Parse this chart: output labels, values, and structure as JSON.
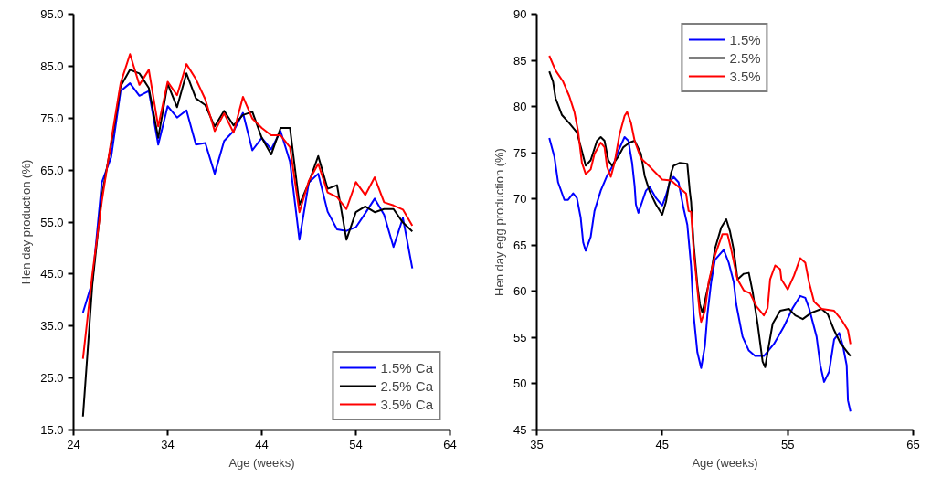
{
  "chart_data": [
    {
      "type": "line",
      "xlabel": "Age (weeks)",
      "ylabel": "Hen day production (%)",
      "xlim": [
        24,
        64
      ],
      "xticks": [
        24,
        34,
        44,
        54,
        64
      ],
      "ylim": [
        15,
        95
      ],
      "yticks": [
        {
          "value": 15,
          "label": "15.0"
        },
        {
          "value": 25,
          "label": "25.0"
        },
        {
          "value": 35,
          "label": "35.0"
        },
        {
          "value": 45,
          "label": "45.0"
        },
        {
          "value": 55,
          "label": "55.0"
        },
        {
          "value": 65,
          "label": "65.0"
        },
        {
          "value": 75,
          "label": "75.0"
        },
        {
          "value": 85,
          "label": "85.0"
        },
        {
          "value": 95,
          "label": "95.0"
        }
      ],
      "grid": false,
      "legend": "bottom right",
      "marker": "none",
      "line_style": "solid",
      "x": [
        25,
        26,
        27,
        28,
        29,
        30,
        31,
        32,
        33,
        34,
        35,
        36,
        37,
        38,
        39,
        40,
        41,
        42,
        43,
        44,
        45,
        46,
        47,
        48,
        49,
        50,
        51,
        52,
        53,
        54,
        55,
        56,
        57,
        58,
        59,
        60
      ],
      "series": [
        {
          "name": "1.5% Ca",
          "color": "#0000ff",
          "values": [
            37.6,
            43.5,
            62.6,
            67.5,
            80.2,
            81.7,
            79.3,
            80.2,
            69.9,
            77.3,
            75.1,
            76.5,
            69.9,
            70.2,
            64.3,
            70.6,
            72.5,
            76.0,
            68.8,
            71.2,
            69.0,
            72.5,
            66.6,
            51.6,
            62.6,
            64.3,
            57.0,
            53.6,
            53.3,
            54.0,
            56.7,
            59.5,
            56.4,
            50.2,
            55.8,
            46.1
          ]
        },
        {
          "name": "2.5% Ca",
          "color": "#000000",
          "values": [
            17.6,
            43,
            60,
            70,
            81.1,
            84.3,
            83.6,
            80.8,
            71.2,
            81.6,
            77.1,
            83.6,
            78.8,
            77.5,
            73.4,
            76.4,
            73.6,
            75.6,
            76.2,
            71.2,
            68.0,
            73.1,
            73.1,
            58.3,
            62.6,
            67.7,
            61.4,
            62.1,
            51.6,
            56.9,
            58.0,
            56.9,
            57.5,
            57.5,
            54.9,
            53.2
          ]
        },
        {
          "name": "3.5% Ca",
          "color": "#ff0000",
          "values": [
            28.7,
            45,
            58.9,
            70.6,
            81.7,
            87.3,
            81.4,
            84.3,
            73.4,
            82.0,
            79.4,
            85.4,
            82.5,
            78.6,
            72.5,
            75.9,
            72.2,
            79.1,
            74.9,
            73.1,
            71.7,
            71.7,
            69.4,
            56.9,
            62.9,
            66.2,
            60.7,
            59.8,
            57.5,
            62.7,
            60.2,
            63.6,
            58.8,
            58.2,
            57.4,
            54.3
          ]
        }
      ]
    },
    {
      "type": "line",
      "xlabel": "Age (weeks)",
      "ylabel": "Hen day egg production (%)",
      "xlim": [
        35,
        65
      ],
      "xticks": [
        35,
        45,
        55,
        65
      ],
      "ylim": [
        45,
        90
      ],
      "yticks": [
        45,
        50,
        55,
        60,
        65,
        70,
        75,
        80,
        85,
        90
      ],
      "grid": false,
      "legend": "top",
      "marker": "none",
      "line_style": "solid",
      "series": [
        {
          "name": "1.5%",
          "color": "#0000ff",
          "x": [
            36.0,
            36.4,
            36.7,
            37.2,
            37.5,
            37.9,
            38.2,
            38.5,
            38.7,
            38.9,
            39.3,
            39.6,
            40.1,
            40.6,
            41.1,
            41.5,
            42.0,
            42.3,
            42.6,
            42.8,
            42.9,
            43.1,
            43.4,
            43.7,
            44.0,
            44.5,
            45.0,
            45.3,
            45.6,
            45.9,
            46.3,
            46.7,
            47.0,
            47.3,
            47.5,
            47.8,
            48.1,
            48.4,
            48.6,
            48.9,
            49.2,
            49.9,
            50.3,
            50.7,
            50.9,
            51.4,
            51.9,
            52.4,
            53.1,
            53.9,
            54.7,
            55.4,
            56.0,
            56.4,
            56.7,
            57.3,
            57.6,
            57.9,
            58.3,
            58.7,
            59.1,
            59.4,
            59.7,
            59.8,
            60.0
          ],
          "values": [
            76.6,
            74.6,
            71.8,
            69.9,
            69.9,
            70.6,
            70.1,
            68.0,
            65.3,
            64.4,
            65.9,
            68.7,
            70.9,
            72.5,
            73.7,
            75.2,
            76.7,
            76.3,
            73.9,
            71.4,
            69.4,
            68.5,
            69.7,
            70.9,
            71.3,
            70.1,
            69.3,
            70.4,
            71.8,
            72.4,
            71.8,
            69.0,
            67.2,
            62.7,
            57.5,
            53.4,
            51.7,
            54.1,
            57.5,
            61.0,
            63.4,
            64.5,
            63.1,
            61.0,
            58.6,
            55.1,
            53.6,
            53.0,
            53.0,
            54.3,
            56.2,
            58.2,
            59.5,
            59.3,
            58.2,
            55.1,
            52.0,
            50.2,
            51.3,
            54.8,
            55.5,
            54.1,
            52.0,
            48.2,
            47.0
          ]
        },
        {
          "name": "2.5%",
          "color": "#000000",
          "x": [
            36.0,
            36.3,
            36.5,
            37.0,
            37.6,
            38.2,
            38.6,
            38.9,
            39.3,
            39.8,
            40.1,
            40.4,
            40.7,
            41.0,
            41.5,
            41.9,
            42.4,
            42.8,
            43.3,
            43.6,
            44.0,
            44.5,
            45.0,
            45.3,
            45.7,
            45.9,
            46.4,
            47.0,
            47.2,
            47.3,
            47.5,
            47.8,
            48.0,
            48.2,
            48.5,
            48.9,
            49.2,
            49.7,
            50.1,
            50.4,
            50.7,
            51.0,
            51.5,
            51.9,
            52.2,
            52.6,
            53.0,
            53.2,
            53.4,
            53.8,
            54.4,
            55.1,
            55.6,
            56.2,
            56.9,
            57.7,
            58.2,
            58.7,
            59.2,
            59.6,
            60.0
          ],
          "values": [
            83.8,
            82.7,
            80.9,
            79.1,
            78.2,
            77.2,
            75.2,
            73.6,
            74.2,
            76.3,
            76.7,
            76.3,
            74.2,
            73.6,
            74.6,
            75.6,
            76.1,
            76.3,
            74.9,
            72.5,
            70.8,
            69.4,
            68.3,
            69.7,
            72.8,
            73.6,
            73.9,
            73.8,
            70.8,
            69.7,
            65.2,
            60.7,
            58.6,
            57.7,
            59.6,
            62.0,
            64.6,
            66.9,
            67.8,
            66.5,
            64.5,
            61.3,
            61.9,
            62.0,
            60.0,
            56.5,
            52.4,
            51.8,
            53.4,
            56.5,
            57.9,
            58.1,
            57.4,
            57.0,
            57.7,
            58.1,
            57.5,
            55.8,
            54.4,
            53.7,
            53.0
          ]
        },
        {
          "name": "3.5%",
          "color": "#ff0000",
          "x": [
            36.0,
            36.5,
            37.1,
            37.6,
            38.0,
            38.3,
            38.6,
            38.9,
            39.3,
            39.6,
            40.1,
            40.4,
            40.6,
            40.9,
            41.2,
            41.6,
            42.0,
            42.2,
            42.5,
            42.8,
            43.3,
            44.0,
            45.0,
            45.7,
            46.3,
            46.9,
            47.1,
            47.3,
            47.5,
            47.8,
            48.0,
            48.1,
            48.4,
            48.7,
            49.2,
            49.8,
            50.2,
            50.5,
            51.0,
            51.5,
            52.0,
            52.5,
            53.1,
            53.4,
            53.6,
            54.0,
            54.4,
            54.5,
            55.0,
            55.5,
            56.0,
            56.4,
            56.7,
            57.1,
            57.7,
            58.7,
            59.3,
            59.8,
            60.0
          ],
          "values": [
            85.5,
            83.9,
            82.7,
            81.1,
            79.4,
            77.3,
            73.9,
            72.7,
            73.2,
            74.9,
            76.1,
            75.6,
            73.5,
            72.4,
            73.9,
            77.0,
            79.0,
            79.4,
            78.3,
            76.3,
            74.4,
            73.5,
            72.1,
            72.0,
            71.3,
            70.6,
            68.7,
            68.6,
            64.5,
            60.3,
            57.5,
            56.7,
            57.9,
            61.0,
            63.9,
            66.2,
            66.2,
            64.5,
            61.3,
            60.1,
            59.8,
            58.4,
            57.4,
            58.2,
            61.3,
            62.8,
            62.4,
            61.3,
            60.2,
            61.7,
            63.6,
            63.1,
            61.0,
            58.9,
            58.1,
            57.9,
            56.9,
            55.8,
            54.3
          ]
        }
      ]
    }
  ]
}
